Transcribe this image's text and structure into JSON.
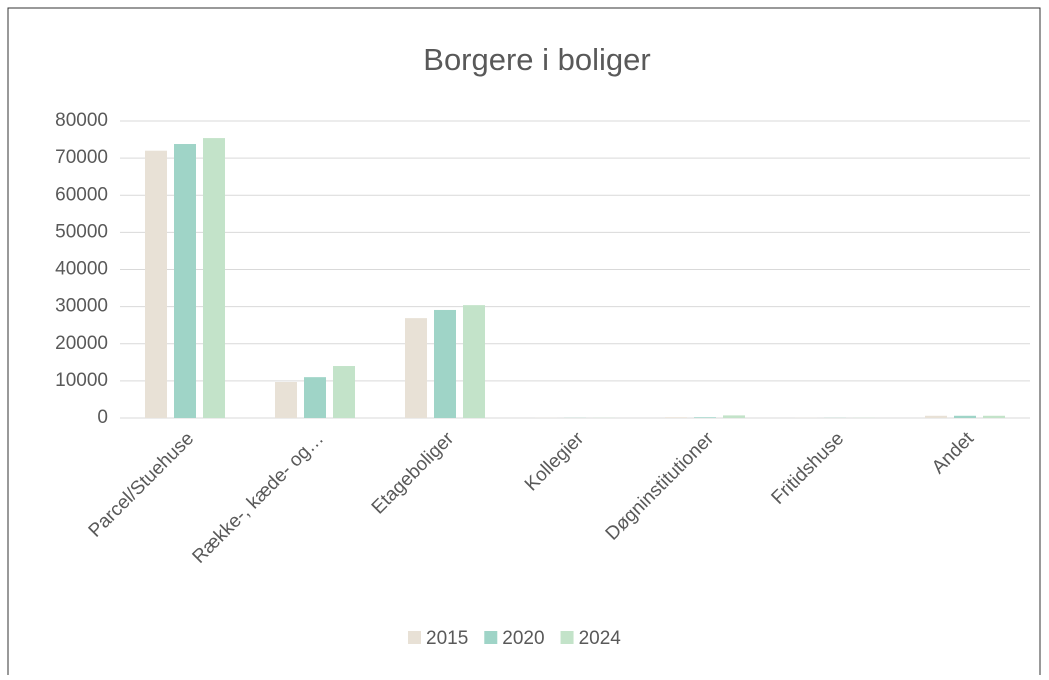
{
  "chart_data": {
    "type": "bar",
    "title": "Borgere i boliger",
    "categories": [
      "Parcel/Stuehuse",
      "Række-, kæde- og…",
      "Etageboliger",
      "Kollegier",
      "Døgninstitutioner",
      "Fritidshuse",
      "Andet"
    ],
    "series": [
      {
        "name": "2015",
        "color": "#e8e1d6",
        "values": [
          72000,
          9700,
          26900,
          50,
          200,
          50,
          600
        ]
      },
      {
        "name": "2020",
        "color": "#9fd4c7",
        "values": [
          73800,
          11000,
          29100,
          50,
          200,
          50,
          600
        ]
      },
      {
        "name": "2024",
        "color": "#c3e3c9",
        "values": [
          75400,
          14000,
          30400,
          50,
          700,
          50,
          600
        ]
      }
    ],
    "ylim": [
      0,
      80000
    ],
    "yticks": [
      0,
      10000,
      20000,
      30000,
      40000,
      50000,
      60000,
      70000,
      80000
    ],
    "grid": true,
    "legend": "bottom"
  }
}
